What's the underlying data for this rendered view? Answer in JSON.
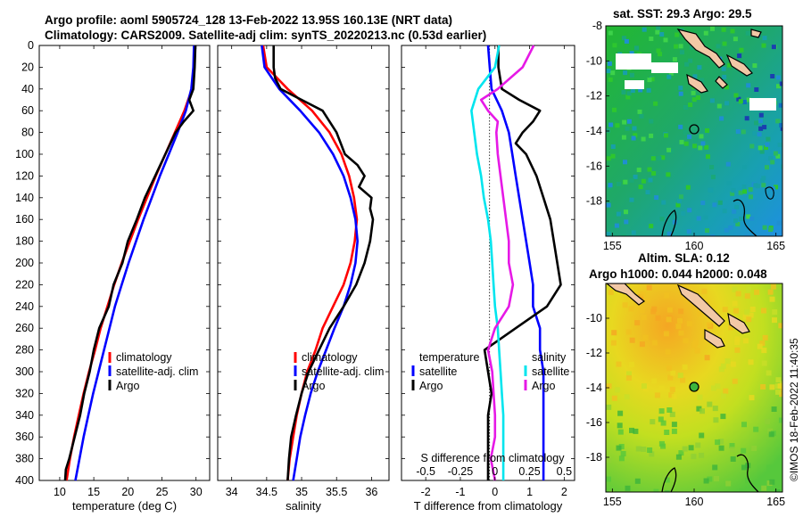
{
  "titles": {
    "line1": "Argo profile: aoml 5905724_128 13-Feb-2022 13.95S 160.13E (NRT data)",
    "line2": "Climatology: CARS2009. Satellite-adj clim: synTS_20220213.nc (0.53d earlier)",
    "sst": "sat. SST: 29.3 Argo: 29.5",
    "sla1": "Altim. SLA: 0.12",
    "sla2": "Argo h1000: 0.044 h2000: 0.048"
  },
  "credit": "©IMOS 18-Feb-2022 11:40:35",
  "colors": {
    "climatology": "#ff0000",
    "satellite": "#0000ff",
    "argo": "#000000",
    "t_diff": "#00e5ee",
    "s_diff": "#e619e6"
  },
  "depth_axis": {
    "ylim": [
      0,
      400
    ],
    "ticks": [
      0,
      20,
      40,
      60,
      80,
      100,
      120,
      140,
      160,
      180,
      200,
      220,
      240,
      260,
      280,
      300,
      320,
      340,
      360,
      380,
      400
    ]
  },
  "chart_data": [
    {
      "type": "line",
      "xlabel": "temperature (deg C)",
      "xlim": [
        7,
        32
      ],
      "xticks": [
        10,
        15,
        20,
        25,
        30
      ],
      "legend": [
        "climatology",
        "satellite-adj. clim",
        "Argo"
      ],
      "series": [
        {
          "name": "climatology",
          "depth": [
            0,
            20,
            40,
            60,
            80,
            100,
            120,
            140,
            160,
            180,
            200,
            220,
            240,
            260,
            280,
            300,
            320,
            340,
            360,
            380,
            400
          ],
          "values": [
            29.8,
            29.7,
            29.4,
            28.3,
            26.9,
            25.5,
            24.1,
            22.8,
            21.5,
            20.3,
            19.1,
            18.0,
            17.0,
            16.0,
            15.2,
            14.3,
            13.5,
            12.8,
            12.1,
            11.5,
            11.0
          ]
        },
        {
          "name": "satellite-adj. clim",
          "depth": [
            0,
            20,
            40,
            60,
            80,
            100,
            120,
            140,
            160,
            180,
            200,
            220,
            240,
            260,
            280,
            300,
            320,
            340,
            360,
            380,
            400
          ],
          "values": [
            29.7,
            29.6,
            29.3,
            28.5,
            27.3,
            26.0,
            24.7,
            23.5,
            22.3,
            21.2,
            20.1,
            19.1,
            18.1,
            17.3,
            16.5,
            15.7,
            14.9,
            14.2,
            13.5,
            12.9,
            12.3
          ]
        },
        {
          "name": "Argo",
          "depth": [
            0,
            20,
            40,
            50,
            60,
            70,
            80,
            100,
            120,
            140,
            160,
            180,
            200,
            220,
            240,
            260,
            280,
            300,
            320,
            340,
            360,
            380,
            390,
            400
          ],
          "values": [
            29.9,
            29.8,
            29.6,
            29.0,
            29.6,
            28.2,
            27.0,
            25.5,
            24.0,
            22.5,
            21.3,
            20.0,
            19.2,
            17.9,
            17.2,
            15.8,
            15.0,
            14.4,
            13.6,
            13.0,
            12.2,
            11.4,
            10.9,
            10.8
          ]
        }
      ]
    },
    {
      "type": "line",
      "xlabel": "salinity",
      "xlim": [
        33.8,
        36.25
      ],
      "xticks": [
        34,
        34.5,
        35,
        35.5,
        36
      ],
      "legend": [
        "climatology",
        "satellite-adj. clim",
        "Argo"
      ],
      "series": [
        {
          "name": "climatology",
          "depth": [
            0,
            20,
            40,
            60,
            80,
            100,
            120,
            140,
            160,
            180,
            200,
            220,
            240,
            260,
            280,
            300,
            320,
            340,
            360,
            380,
            400
          ],
          "values": [
            34.45,
            34.5,
            34.8,
            35.15,
            35.4,
            35.57,
            35.68,
            35.75,
            35.79,
            35.76,
            35.7,
            35.6,
            35.45,
            35.3,
            35.2,
            35.08,
            35.0,
            34.93,
            34.88,
            34.83,
            34.8
          ]
        },
        {
          "name": "satellite-adj. clim",
          "depth": [
            0,
            20,
            40,
            60,
            80,
            100,
            120,
            140,
            160,
            180,
            200,
            220,
            240,
            260,
            280,
            300,
            320,
            340,
            360,
            380,
            400
          ],
          "values": [
            34.43,
            34.47,
            34.68,
            34.98,
            35.25,
            35.45,
            35.6,
            35.7,
            35.77,
            35.8,
            35.77,
            35.7,
            35.6,
            35.47,
            35.35,
            35.23,
            35.13,
            35.05,
            34.98,
            34.93,
            34.88
          ]
        },
        {
          "name": "Argo",
          "depth": [
            0,
            20,
            30,
            40,
            50,
            60,
            80,
            100,
            110,
            120,
            130,
            140,
            150,
            160,
            180,
            200,
            220,
            240,
            260,
            280,
            300,
            320,
            340,
            360,
            380,
            400
          ],
          "values": [
            34.6,
            34.6,
            34.62,
            34.7,
            35.0,
            35.3,
            35.5,
            35.62,
            35.8,
            35.9,
            35.82,
            36.0,
            35.98,
            36.02,
            35.98,
            35.9,
            35.78,
            35.6,
            35.4,
            35.25,
            35.1,
            35.0,
            34.92,
            34.85,
            34.82,
            34.8
          ]
        }
      ]
    },
    {
      "type": "line",
      "xlabel": "T difference from climatology",
      "xlabel_top": "S difference from climatology",
      "xlim": [
        -2.7,
        2.3
      ],
      "xticks": [
        -2,
        -1,
        0,
        1,
        2
      ],
      "xlim_top": [
        -0.675,
        0.575
      ],
      "xticks_top": [
        -0.5,
        -0.25,
        0,
        0.25,
        0.5
      ],
      "legend_left": [
        "temperature",
        "satellite",
        "Argo"
      ],
      "legend_right": [
        "salinity",
        "satellite",
        "Argo"
      ],
      "series": [
        {
          "name": "T satellite",
          "axis": "T",
          "depth": [
            0,
            20,
            40,
            60,
            80,
            100,
            120,
            140,
            160,
            180,
            200,
            220,
            240,
            260,
            280,
            300,
            320,
            340,
            360,
            380,
            400
          ],
          "values": [
            -0.2,
            -0.15,
            -0.1,
            0.2,
            0.4,
            0.5,
            0.6,
            0.7,
            0.8,
            0.9,
            1.0,
            1.1,
            1.1,
            1.3,
            1.3,
            1.4,
            1.4,
            1.4,
            1.4,
            1.4,
            1.4
          ]
        },
        {
          "name": "T Argo",
          "axis": "T",
          "depth": [
            0,
            20,
            40,
            50,
            60,
            70,
            80,
            90,
            100,
            120,
            140,
            160,
            180,
            200,
            220,
            240,
            260,
            280,
            300,
            320,
            340,
            360,
            380,
            400
          ],
          "values": [
            0.1,
            0.1,
            0.2,
            0.7,
            1.3,
            1.1,
            0.8,
            0.6,
            0.9,
            1.2,
            1.4,
            1.6,
            1.7,
            1.8,
            1.9,
            1.5,
            0.6,
            -0.3,
            -0.2,
            -0.1,
            -0.2,
            -0.2,
            -0.2,
            -0.2
          ]
        },
        {
          "name": "S satellite",
          "axis": "S",
          "depth": [
            0,
            20,
            40,
            60,
            80,
            100,
            120,
            140,
            160,
            180,
            200,
            220,
            240,
            260,
            280,
            300,
            320,
            340,
            360,
            380,
            400
          ],
          "values": [
            0.03,
            0.0,
            -0.12,
            -0.17,
            -0.15,
            -0.13,
            -0.1,
            -0.08,
            -0.05,
            -0.03,
            -0.02,
            -0.01,
            0.0,
            0.02,
            0.03,
            0.04,
            0.05,
            0.06,
            0.06,
            0.06,
            0.06
          ]
        },
        {
          "name": "S Argo",
          "axis": "S",
          "depth": [
            0,
            20,
            40,
            50,
            60,
            70,
            80,
            100,
            120,
            140,
            160,
            180,
            200,
            220,
            240,
            260,
            280,
            300,
            320,
            340,
            360,
            380,
            400
          ],
          "values": [
            0.28,
            0.2,
            0.02,
            -0.1,
            -0.05,
            0.02,
            0.01,
            0.02,
            0.04,
            0.06,
            0.08,
            0.1,
            0.1,
            0.13,
            0.1,
            0.0,
            -0.05,
            -0.02,
            -0.01,
            0.0,
            0.0,
            -0.03,
            0.0
          ]
        }
      ]
    },
    {
      "type": "heatmap",
      "title": "sat. SST: 29.3 Argo: 29.5",
      "xlim": [
        154.6,
        165.4
      ],
      "ylim": [
        -20,
        -8
      ],
      "xticks": [
        155,
        160,
        165
      ],
      "yticks": [
        -8,
        -10,
        -12,
        -14,
        -16,
        -18
      ],
      "argo_position": {
        "lon": 160.13,
        "lat": -13.95
      }
    },
    {
      "type": "heatmap",
      "title": "Altim. SLA: 0.12",
      "xlim": [
        154.6,
        165.4
      ],
      "ylim": [
        -20,
        -8
      ],
      "xticks": [
        155,
        160,
        165
      ],
      "yticks": [
        -10,
        -12,
        -14,
        -16,
        -18
      ],
      "argo_position": {
        "lon": 160.13,
        "lat": -13.95
      }
    }
  ]
}
